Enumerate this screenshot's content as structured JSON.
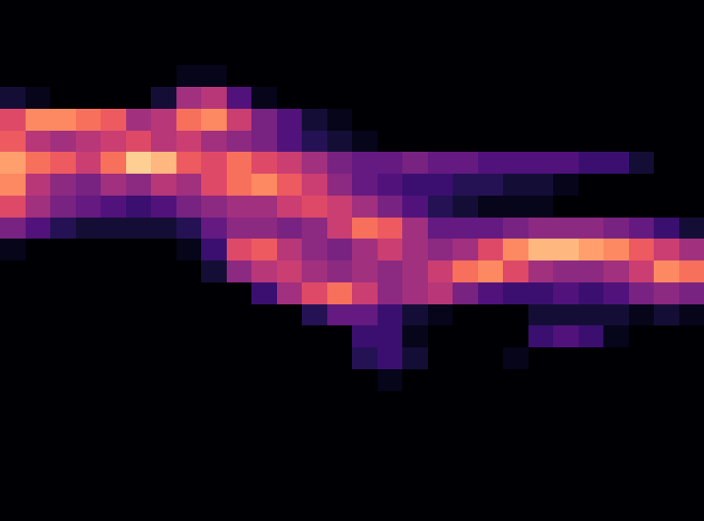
{
  "chart_data": {
    "type": "heatmap",
    "color": "magma",
    "tick_labels": false,
    "grid": false,
    "zlim": [
      0,
      100
    ],
    "cells": [
      [
        0,
        0,
        0,
        0,
        0,
        0,
        0,
        0,
        0,
        0,
        0,
        0,
        0,
        0,
        0,
        0,
        0,
        0,
        0,
        0,
        0,
        0,
        0,
        0,
        0,
        0,
        0,
        0
      ],
      [
        0,
        0,
        0,
        0,
        0,
        0,
        0,
        0,
        0,
        0,
        0,
        0,
        0,
        0,
        0,
        0,
        0,
        0,
        0,
        0,
        0,
        0,
        0,
        0,
        0,
        0,
        0,
        0
      ],
      [
        0,
        0,
        0,
        0,
        0,
        0,
        0,
        0,
        0,
        0,
        0,
        0,
        0,
        0,
        0,
        0,
        0,
        0,
        0,
        0,
        0,
        0,
        0,
        0,
        0,
        0,
        0,
        0
      ],
      [
        0,
        0,
        0,
        0,
        0,
        0,
        0,
        5,
        5,
        0,
        0,
        0,
        0,
        0,
        0,
        0,
        0,
        0,
        0,
        0,
        0,
        0,
        0,
        0,
        0,
        0,
        0,
        0
      ],
      [
        10,
        5,
        0,
        0,
        0,
        0,
        10,
        45,
        50,
        25,
        5,
        0,
        0,
        0,
        0,
        0,
        0,
        0,
        0,
        0,
        0,
        0,
        0,
        0,
        0,
        0,
        0,
        0
      ],
      [
        60,
        75,
        75,
        70,
        65,
        45,
        50,
        70,
        75,
        55,
        35,
        25,
        10,
        5,
        0,
        0,
        0,
        0,
        0,
        0,
        0,
        0,
        0,
        0,
        0,
        0,
        0,
        0
      ],
      [
        65,
        50,
        45,
        50,
        55,
        60,
        50,
        55,
        45,
        40,
        35,
        25,
        15,
        10,
        5,
        0,
        0,
        0,
        0,
        0,
        0,
        0,
        0,
        0,
        0,
        0,
        0,
        0
      ],
      [
        80,
        70,
        65,
        55,
        70,
        90,
        85,
        65,
        60,
        70,
        60,
        55,
        45,
        35,
        30,
        30,
        35,
        30,
        30,
        25,
        25,
        25,
        25,
        20,
        20,
        10,
        0,
        0
      ],
      [
        75,
        50,
        40,
        35,
        45,
        40,
        50,
        45,
        60,
        70,
        75,
        65,
        55,
        40,
        30,
        25,
        20,
        20,
        15,
        15,
        10,
        10,
        5,
        0,
        0,
        0,
        0,
        0
      ],
      [
        60,
        45,
        35,
        30,
        25,
        20,
        25,
        35,
        40,
        45,
        45,
        55,
        60,
        55,
        45,
        35,
        25,
        15,
        10,
        5,
        5,
        5,
        0,
        0,
        0,
        0,
        0,
        0
      ],
      [
        35,
        25,
        15,
        10,
        10,
        10,
        10,
        15,
        30,
        40,
        40,
        35,
        40,
        55,
        70,
        65,
        45,
        30,
        30,
        30,
        35,
        40,
        40,
        40,
        35,
        30,
        20,
        10
      ],
      [
        5,
        0,
        0,
        0,
        0,
        0,
        0,
        5,
        20,
        60,
        65,
        50,
        40,
        35,
        45,
        55,
        45,
        40,
        45,
        60,
        75,
        85,
        85,
        80,
        75,
        65,
        55,
        45
      ],
      [
        0,
        0,
        0,
        0,
        0,
        0,
        0,
        0,
        10,
        40,
        50,
        55,
        45,
        40,
        45,
        40,
        45,
        55,
        70,
        75,
        60,
        45,
        40,
        40,
        45,
        55,
        75,
        70
      ],
      [
        0,
        0,
        0,
        0,
        0,
        0,
        0,
        0,
        0,
        0,
        20,
        45,
        60,
        70,
        55,
        40,
        45,
        50,
        35,
        25,
        20,
        20,
        25,
        20,
        25,
        35,
        40,
        35
      ],
      [
        0,
        0,
        0,
        0,
        0,
        0,
        0,
        0,
        0,
        0,
        0,
        0,
        15,
        30,
        30,
        20,
        10,
        5,
        0,
        0,
        0,
        10,
        10,
        10,
        10,
        5,
        10,
        5
      ],
      [
        0,
        0,
        0,
        0,
        0,
        0,
        0,
        0,
        0,
        0,
        0,
        0,
        0,
        0,
        20,
        20,
        5,
        0,
        0,
        0,
        0,
        20,
        25,
        20,
        5,
        0,
        0,
        0
      ],
      [
        0,
        0,
        0,
        0,
        0,
        0,
        0,
        0,
        0,
        0,
        0,
        0,
        0,
        0,
        15,
        20,
        10,
        0,
        0,
        0,
        5,
        0,
        0,
        0,
        0,
        0,
        0,
        0
      ],
      [
        0,
        0,
        0,
        0,
        0,
        0,
        0,
        0,
        0,
        0,
        0,
        0,
        0,
        0,
        0,
        5,
        0,
        0,
        0,
        0,
        0,
        0,
        0,
        0,
        0,
        0,
        0,
        0
      ],
      [
        0,
        0,
        0,
        0,
        0,
        0,
        0,
        0,
        0,
        0,
        0,
        0,
        0,
        0,
        0,
        0,
        0,
        0,
        0,
        0,
        0,
        0,
        0,
        0,
        0,
        0,
        0,
        0
      ],
      [
        0,
        0,
        0,
        0,
        0,
        0,
        0,
        0,
        0,
        0,
        0,
        0,
        0,
        0,
        0,
        0,
        0,
        0,
        0,
        0,
        0,
        0,
        0,
        0,
        0,
        0,
        0,
        0
      ],
      [
        0,
        0,
        0,
        0,
        0,
        0,
        0,
        0,
        0,
        0,
        0,
        0,
        0,
        0,
        0,
        0,
        0,
        0,
        0,
        0,
        0,
        0,
        0,
        0,
        0,
        0,
        0,
        0
      ],
      [
        0,
        0,
        0,
        0,
        0,
        0,
        0,
        0,
        0,
        0,
        0,
        0,
        0,
        0,
        0,
        0,
        0,
        0,
        0,
        0,
        0,
        0,
        0,
        0,
        0,
        0,
        0,
        0
      ],
      [
        0,
        0,
        0,
        0,
        0,
        0,
        0,
        0,
        0,
        0,
        0,
        0,
        0,
        0,
        0,
        0,
        0,
        0,
        0,
        0,
        0,
        0,
        0,
        0,
        0,
        0,
        0,
        0
      ],
      [
        0,
        0,
        0,
        0,
        0,
        0,
        0,
        0,
        0,
        0,
        0,
        0,
        0,
        0,
        0,
        0,
        0,
        0,
        0,
        0,
        0,
        0,
        0,
        0,
        0,
        0,
        0,
        0
      ]
    ]
  }
}
